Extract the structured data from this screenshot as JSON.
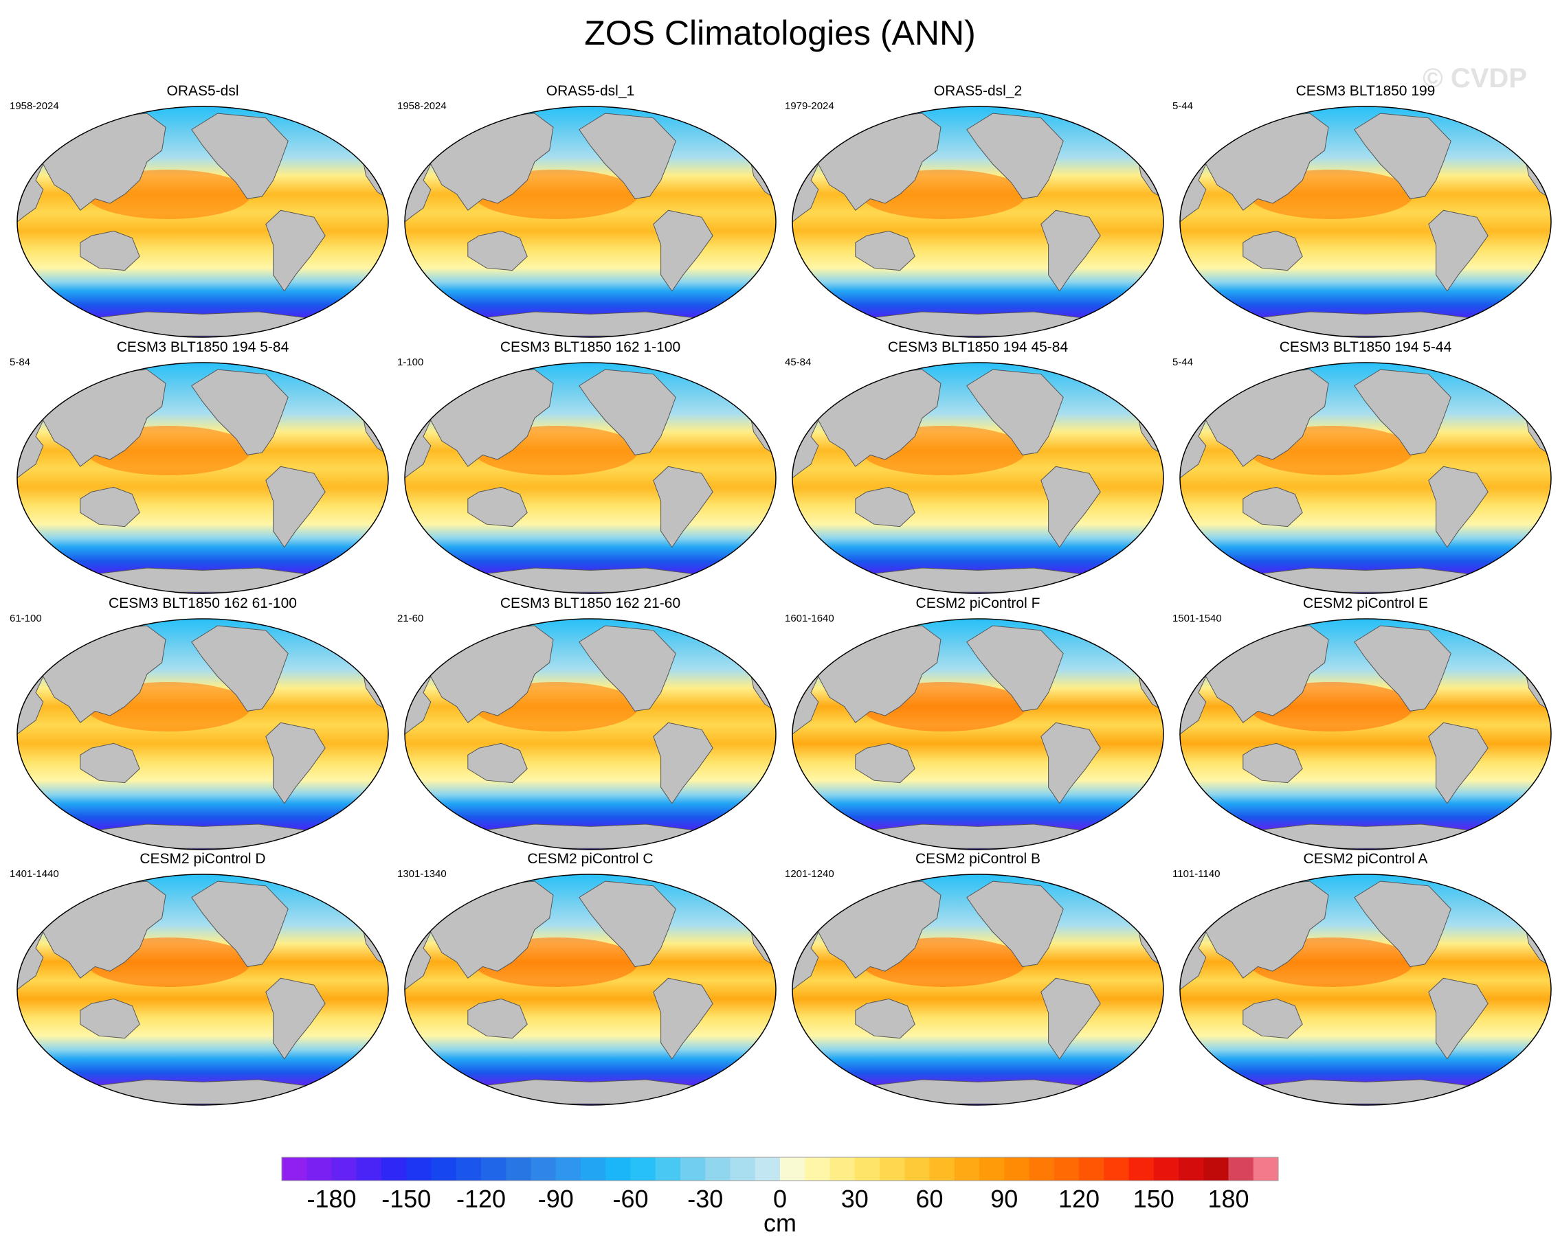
{
  "title": "ZOS Climatologies (ANN)",
  "watermark": "© CVDP",
  "chart_data": [
    {
      "type": "heatmap",
      "title": "ORAS5-dsl",
      "period": "1958-2024",
      "intensity": 0.6
    },
    {
      "type": "heatmap",
      "title": "ORAS5-dsl_1",
      "period": "1958-2024",
      "intensity": 0.6
    },
    {
      "type": "heatmap",
      "title": "ORAS5-dsl_2",
      "period": "1979-2024",
      "intensity": 0.6
    },
    {
      "type": "heatmap",
      "title": "CESM3 BLT1850 199",
      "period": "5-44",
      "intensity": 0.55
    },
    {
      "type": "heatmap",
      "title": "CESM3 BLT1850 194 5-84",
      "period": "5-84",
      "intensity": 0.55
    },
    {
      "type": "heatmap",
      "title": "CESM3 BLT1850 162 1-100",
      "period": "1-100",
      "intensity": 0.55
    },
    {
      "type": "heatmap",
      "title": "CESM3 BLT1850 194 45-84",
      "period": "45-84",
      "intensity": 0.55
    },
    {
      "type": "heatmap",
      "title": "CESM3 BLT1850 194 5-44",
      "period": "5-44",
      "intensity": 0.55
    },
    {
      "type": "heatmap",
      "title": "CESM3 BLT1850 162 61-100",
      "period": "61-100",
      "intensity": 0.55
    },
    {
      "type": "heatmap",
      "title": "CESM3 BLT1850 162 21-60",
      "period": "21-60",
      "intensity": 0.55
    },
    {
      "type": "heatmap",
      "title": "CESM2 piControl F",
      "period": "1601-1640",
      "intensity": 0.75
    },
    {
      "type": "heatmap",
      "title": "CESM2 piControl E",
      "period": "1501-1540",
      "intensity": 0.75
    },
    {
      "type": "heatmap",
      "title": "CESM2 piControl D",
      "period": "1401-1440",
      "intensity": 0.75
    },
    {
      "type": "heatmap",
      "title": "CESM2 piControl C",
      "period": "1301-1340",
      "intensity": 0.75
    },
    {
      "type": "heatmap",
      "title": "CESM2 piControl B",
      "period": "1201-1240",
      "intensity": 0.75
    },
    {
      "type": "heatmap",
      "title": "CESM2 piControl A",
      "period": "1101-1140",
      "intensity": 0.75
    }
  ],
  "colorbar": {
    "unit": "cm",
    "min": -200,
    "max": 200,
    "step": 10,
    "tick_labels": [
      "-180",
      "-150",
      "-120",
      "-90",
      "-60",
      "-30",
      "0",
      "30",
      "60",
      "90",
      "120",
      "150",
      "180"
    ],
    "colors": [
      "#9020f0",
      "#7a20f2",
      "#6422f4",
      "#4a24f6",
      "#2e28f6",
      "#1c36f4",
      "#1546f0",
      "#1a56ec",
      "#2066e8",
      "#2876e4",
      "#3086e8",
      "#2e96ee",
      "#22a6f4",
      "#1ab6f8",
      "#28c0f8",
      "#4ac8f4",
      "#70cff0",
      "#8fd6ee",
      "#a8def0",
      "#c2e6f2",
      "#fafad2",
      "#fff6a8",
      "#ffee88",
      "#ffe46a",
      "#ffd850",
      "#ffca38",
      "#ffba24",
      "#ffaa14",
      "#ff9a08",
      "#ff8a04",
      "#ff7a04",
      "#ff6a04",
      "#ff5604",
      "#ff3e06",
      "#f82408",
      "#e8140a",
      "#d40c0c",
      "#c00a0a",
      "#d8445a",
      "#f27a8a"
    ]
  },
  "legend_colors": {
    "land": "#c0c0c0",
    "coast": "#555555"
  }
}
